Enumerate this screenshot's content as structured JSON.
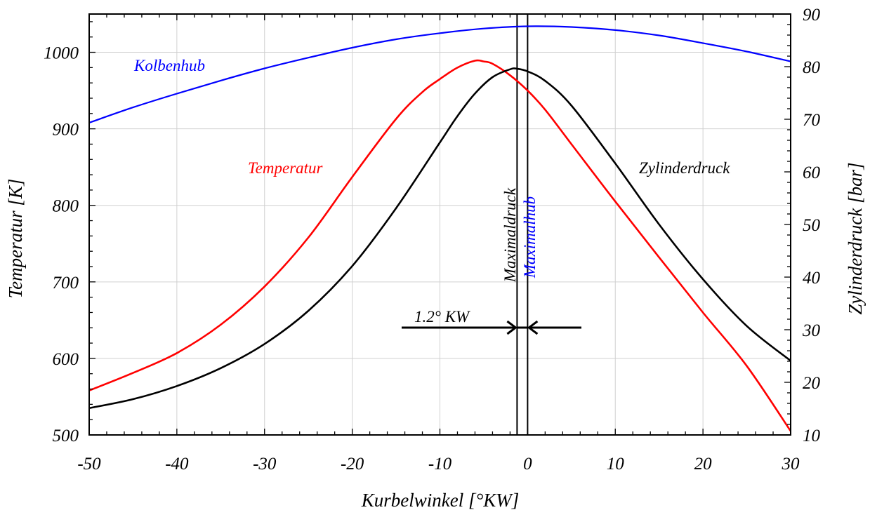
{
  "chart_data": {
    "type": "line",
    "title": "",
    "xlabel": "Kurbelwinkel [°KW]",
    "ylabel_left": "Temperatur [K]",
    "ylabel_right": "Zylinderdruck [bar]",
    "xlim": [
      -50,
      30
    ],
    "ylim_left": [
      500,
      1050
    ],
    "ylim_right": [
      10,
      90
    ],
    "x_ticks": [
      "-50",
      "-40",
      "-30",
      "-20",
      "-10",
      "0",
      "10",
      "20",
      "30"
    ],
    "y_left_ticks": [
      "500",
      "600",
      "700",
      "800",
      "900",
      "1000"
    ],
    "y_right_ticks": [
      "10",
      "20",
      "30",
      "40",
      "50",
      "60",
      "70",
      "80",
      "90"
    ],
    "grid": true,
    "colors": {
      "temperatur": "#ff0000",
      "zylinderdruck": "#000000",
      "kolbenhub": "#0000ff",
      "maximaldruck": "#000000",
      "maximalhub": "#0000ff"
    },
    "series": [
      {
        "name": "Kolbenhub",
        "axis": "left",
        "x": [
          -50,
          -45,
          -40,
          -35,
          -30,
          -25,
          -20,
          -15,
          -10,
          -5,
          0,
          5,
          10,
          15,
          20,
          25,
          30
        ],
        "values": [
          908,
          928,
          946,
          963,
          979,
          993,
          1006,
          1017,
          1025,
          1031,
          1034,
          1033,
          1029,
          1022,
          1012,
          1001,
          988
        ]
      },
      {
        "name": "Temperatur",
        "axis": "left",
        "x": [
          -50,
          -45,
          -40,
          -35,
          -30,
          -25,
          -20,
          -15,
          -12,
          -10,
          -8,
          -6,
          -5,
          -4,
          -2,
          0,
          2,
          5,
          10,
          15,
          20,
          25,
          30
        ],
        "values": [
          558,
          581,
          607,
          644,
          694,
          758,
          837,
          913,
          948,
          965,
          980,
          989,
          988,
          985,
          970,
          950,
          925,
          880,
          805,
          732,
          660,
          590,
          505
        ]
      },
      {
        "name": "Zylinderdruck",
        "axis": "right",
        "x": [
          -50,
          -45,
          -40,
          -35,
          -30,
          -25,
          -20,
          -15,
          -10,
          -8,
          -6,
          -4,
          -2,
          -1.2,
          0,
          2,
          5,
          10,
          15,
          20,
          25,
          30
        ],
        "values": [
          15.1,
          16.8,
          19.3,
          22.7,
          27.3,
          33.6,
          42.1,
          53.1,
          65.6,
          70.6,
          74.9,
          78.0,
          79.5,
          79.6,
          79.1,
          77.3,
          72.6,
          61.6,
          50.0,
          39.6,
          30.7,
          24.1
        ]
      }
    ],
    "curve_labels": {
      "kolbenhub": "Kolbenhub",
      "temperatur": "Temperatur",
      "zylinderdruck": "Zylinderdruck",
      "maximaldruck": "Maximaldruck",
      "maximalhub": "Maximalhub"
    },
    "vertical_lines": [
      {
        "label": "Maximaldruck",
        "x": -1.2
      },
      {
        "label": "Maximalhub",
        "x": 0
      }
    ],
    "annotations": [
      {
        "text": "1.2° KW"
      }
    ]
  }
}
